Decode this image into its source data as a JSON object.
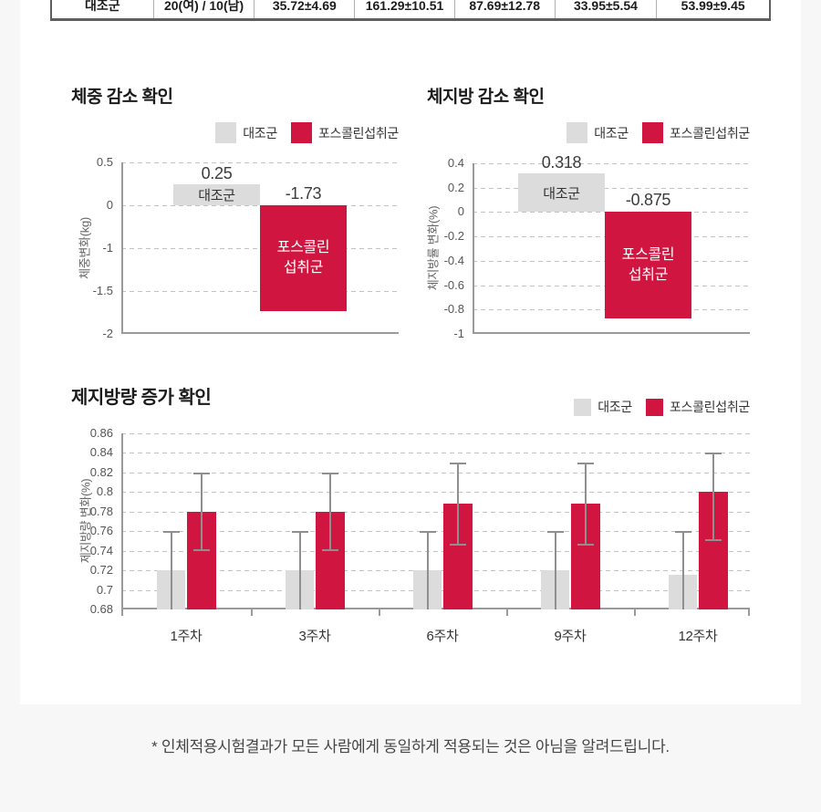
{
  "table": {
    "row": [
      "대조군",
      "20(여) / 10(남)",
      "35.72±4.69",
      "161.29±10.51",
      "87.69±12.78",
      "33.95±5.54",
      "53.99±9.45"
    ]
  },
  "legend": {
    "control": "대조군",
    "treatment": "포스콜린섭취군"
  },
  "colors": {
    "control": "#dcdcdc",
    "treatment": "#d01540",
    "grid": "#c3c3c3",
    "axis": "#9a9a9a",
    "error": "#8f8f8f"
  },
  "chart_data": [
    {
      "type": "bar",
      "title": "체중 감소 확인",
      "ylabel": "체중변화(kg)",
      "yticks": [
        0.5,
        0,
        -1,
        -1.5,
        -2
      ],
      "ylim": [
        -2,
        0.5
      ],
      "grid": true,
      "legend": [
        "대조군",
        "포스콜린섭취군"
      ],
      "legend_position": "top-right",
      "bars": [
        {
          "series": "control",
          "value": 0.25,
          "label": "0.25",
          "inner_label": "대조군"
        },
        {
          "series": "treatment",
          "value": -1.73,
          "label": "-1.73",
          "inner_label": "포스콜린\n섭취군"
        }
      ]
    },
    {
      "type": "bar",
      "title": "체지방 감소 확인",
      "ylabel": "체지방률 변화(%)",
      "yticks": [
        0.4,
        0.2,
        0,
        -0.2,
        -0.4,
        -0.6,
        -0.8,
        -1
      ],
      "ylim": [
        -1,
        0.4
      ],
      "grid": true,
      "legend": [
        "대조군",
        "포스콜린섭취군"
      ],
      "legend_position": "top-right",
      "bars": [
        {
          "series": "control",
          "value": 0.318,
          "label": "0.318",
          "inner_label": "대조군"
        },
        {
          "series": "treatment",
          "value": -0.875,
          "label": "-0.875",
          "inner_label": "포스콜린\n섭취군"
        }
      ]
    },
    {
      "type": "grouped-bar",
      "title": "제지방량 증가 확인",
      "ylabel": "제지방량 변화(%)",
      "yticks": [
        0.86,
        0.84,
        0.82,
        0.8,
        0.78,
        0.76,
        0.74,
        0.72,
        0.7,
        0.68
      ],
      "ylim": [
        0.68,
        0.86
      ],
      "baseline": 0.68,
      "grid": true,
      "legend": [
        "대조군",
        "포스콜린섭취군"
      ],
      "legend_position": "top-right",
      "categories": [
        "1주차",
        "3주차",
        "6주차",
        "9주차",
        "12주차"
      ],
      "series": [
        {
          "name": "대조군",
          "key": "control",
          "values": [
            0.72,
            0.72,
            0.72,
            0.72,
            0.715
          ],
          "error_low": [
            null,
            null,
            null,
            null,
            null
          ],
          "error_high": [
            0.76,
            0.76,
            0.76,
            0.76,
            0.76
          ]
        },
        {
          "name": "포스콜린섭취군",
          "key": "treatment",
          "values": [
            0.78,
            0.78,
            0.788,
            0.788,
            0.8
          ],
          "error_low": [
            0.74,
            0.74,
            0.745,
            0.745,
            0.75
          ],
          "error_high": [
            0.82,
            0.82,
            0.83,
            0.83,
            0.84
          ]
        }
      ]
    }
  ],
  "footer": {
    "disclaimer": "* 인체적용시험결과가 모든 사람에게 동일하게 적용되는 것은 아님을 알려드립니다."
  }
}
